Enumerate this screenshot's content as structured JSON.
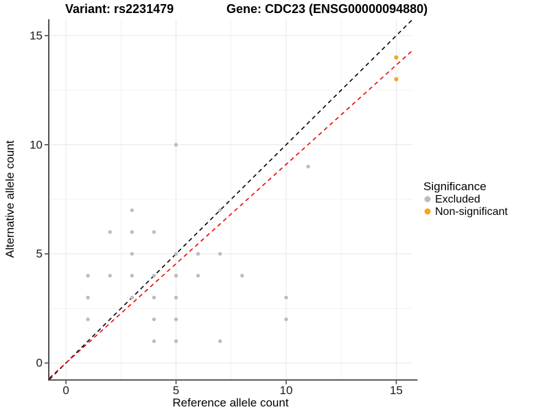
{
  "chart_data": {
    "type": "scatter",
    "title_variant": "Variant: rs2231479",
    "title_gene": "Gene: CDC23 (ENSG00000094880)",
    "xlabel": "Reference allele count",
    "ylabel": "Alternative allele count",
    "xlim": [
      -0.75,
      15.75
    ],
    "ylim": [
      -0.75,
      15.75
    ],
    "x_major_ticks": [
      0,
      5,
      10,
      15
    ],
    "y_major_ticks": [
      0,
      5,
      10,
      15
    ],
    "x_minor_ticks": [
      2.5,
      7.5,
      12.5
    ],
    "y_minor_ticks": [
      2.5,
      7.5,
      12.5
    ],
    "grid": "major+minor",
    "legend_title": "Significance",
    "legend_position": "right",
    "series": [
      {
        "name": "Excluded",
        "color": "#bcbcbc",
        "points": [
          [
            1,
            2
          ],
          [
            1,
            3
          ],
          [
            1,
            4
          ],
          [
            2,
            4
          ],
          [
            2,
            6
          ],
          [
            3,
            3
          ],
          [
            3,
            4
          ],
          [
            3,
            5
          ],
          [
            3,
            6
          ],
          [
            3,
            7
          ],
          [
            4,
            1
          ],
          [
            4,
            2
          ],
          [
            4,
            3
          ],
          [
            4,
            4
          ],
          [
            4,
            6
          ],
          [
            5,
            1
          ],
          [
            5,
            2
          ],
          [
            5,
            3
          ],
          [
            5,
            4
          ],
          [
            5,
            5
          ],
          [
            5,
            10
          ],
          [
            6,
            4
          ],
          [
            6,
            5
          ],
          [
            7,
            1
          ],
          [
            7,
            5
          ],
          [
            7,
            7
          ],
          [
            8,
            4
          ],
          [
            10,
            2
          ],
          [
            10,
            3
          ],
          [
            11,
            9
          ]
        ]
      },
      {
        "name": "Non-significant",
        "color": "#f8a51b",
        "points": [
          [
            15,
            13
          ],
          [
            15,
            14
          ]
        ]
      }
    ],
    "reference_lines": [
      {
        "name": "identity",
        "slope": 1,
        "intercept": 0,
        "color": "#000000",
        "dash": true
      },
      {
        "name": "regression",
        "slope": 0.91,
        "intercept": 0,
        "color": "#ee0000",
        "dash": true
      }
    ]
  }
}
